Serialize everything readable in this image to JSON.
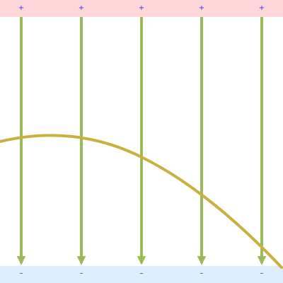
{
  "diagram": {
    "positive_plate": {
      "color": "#ffd6d9",
      "sign_color": "#3333dd",
      "charges": [
        "+",
        "+",
        "+",
        "+",
        "+"
      ]
    },
    "negative_plate": {
      "color": "#ddefff",
      "sign_color": "#333333",
      "charges": [
        "–",
        "–",
        "–",
        "–",
        "–"
      ]
    },
    "field_lines": {
      "count": 5,
      "color": "#9bbb59",
      "direction": "down"
    },
    "trajectory": {
      "color": "#c9b03f",
      "shape": "downward-opening parabola"
    }
  }
}
